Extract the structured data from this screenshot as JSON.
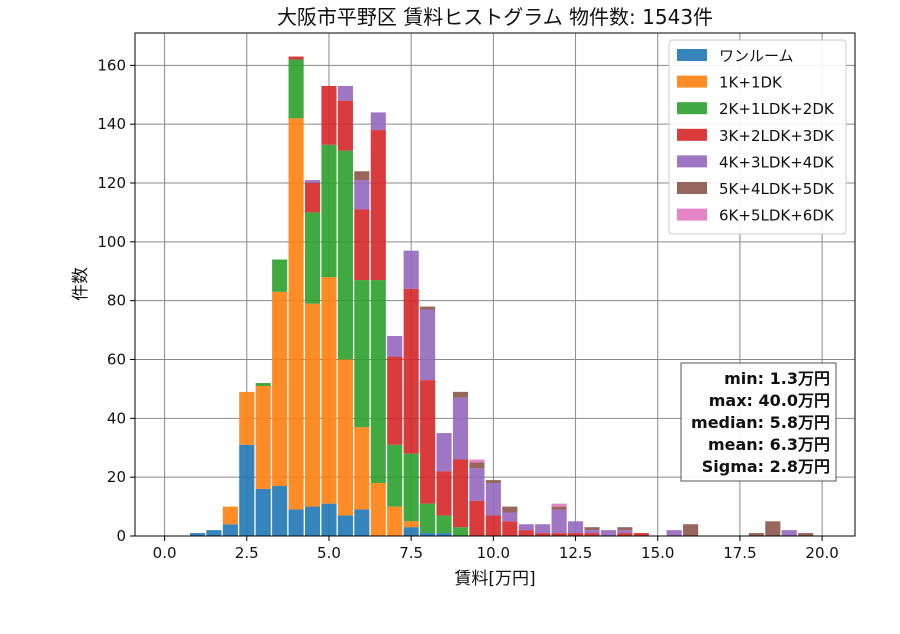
{
  "chart_data": {
    "type": "bar",
    "stacked": true,
    "title": "大阪市平野区 賃料ヒストグラム  物件数: 1543件",
    "xlabel": "賃料[万円]",
    "ylabel": "件数",
    "xlim": [
      -0.9,
      21.0
    ],
    "ylim": [
      0,
      171
    ],
    "xticks": [
      0.0,
      2.5,
      5.0,
      7.5,
      10.0,
      12.5,
      15.0,
      17.5,
      20.0
    ],
    "xtick_labels": [
      "0.0",
      "2.5",
      "5.0",
      "7.5",
      "10.0",
      "12.5",
      "15.0",
      "17.5",
      "20.0"
    ],
    "yticks": [
      0,
      20,
      40,
      60,
      80,
      100,
      120,
      140,
      160
    ],
    "ytick_labels": [
      "0",
      "20",
      "40",
      "60",
      "80",
      "100",
      "120",
      "140",
      "160"
    ],
    "grid": true,
    "legend_position": "top-right",
    "bin_width": 0.5,
    "bin_centers": [
      1.0,
      1.5,
      2.0,
      2.5,
      3.0,
      3.5,
      4.0,
      4.5,
      5.0,
      5.5,
      6.0,
      6.5,
      7.0,
      7.5,
      8.0,
      8.5,
      9.0,
      9.5,
      10.0,
      10.5,
      11.0,
      11.5,
      12.0,
      12.5,
      13.0,
      13.5,
      14.0,
      14.5,
      15.0,
      15.5,
      16.0,
      16.5,
      17.0,
      17.5,
      18.0,
      18.5,
      19.0,
      19.5
    ],
    "series": [
      {
        "name": "ワンルーム",
        "color": "#1f77b4",
        "values": [
          1,
          2,
          4,
          31,
          16,
          17,
          9,
          10,
          11,
          7,
          9,
          0,
          0,
          3,
          1,
          1,
          0,
          0,
          0,
          0,
          0,
          0,
          0,
          0,
          0,
          0,
          0,
          0,
          0,
          0,
          0,
          0,
          0,
          0,
          0,
          0,
          0,
          0
        ]
      },
      {
        "name": "1K+1DK",
        "color": "#ff7f0e",
        "values": [
          0,
          0,
          6,
          18,
          35,
          66,
          133,
          69,
          77,
          53,
          28,
          18,
          10,
          2,
          0,
          0,
          0,
          0,
          0,
          0,
          0,
          0,
          0,
          0,
          0,
          0,
          0,
          0,
          0,
          0,
          0,
          0,
          0,
          0,
          0,
          0,
          0,
          0
        ]
      },
      {
        "name": "2K+1LDK+2DK",
        "color": "#2ca02c",
        "values": [
          0,
          0,
          0,
          0,
          1,
          11,
          20,
          31,
          45,
          71,
          50,
          69,
          21,
          23,
          10,
          6,
          3,
          0,
          0,
          0,
          0,
          0,
          0,
          0,
          0,
          0,
          0,
          0,
          0,
          0,
          0,
          0,
          0,
          0,
          0,
          0,
          0,
          0
        ]
      },
      {
        "name": "3K+2LDK+3DK",
        "color": "#d62728",
        "values": [
          0,
          0,
          0,
          0,
          0,
          0,
          1,
          10,
          20,
          17,
          24,
          51,
          30,
          56,
          42,
          15,
          23,
          12,
          7,
          5,
          2,
          1,
          1,
          1,
          1,
          0,
          1,
          1,
          0,
          0,
          0,
          0,
          0,
          0,
          0,
          0,
          0,
          0
        ]
      },
      {
        "name": "4K+3LDK+4DK",
        "color": "#9467bd",
        "values": [
          0,
          0,
          0,
          0,
          0,
          0,
          0,
          1,
          0,
          5,
          10,
          6,
          7,
          13,
          24,
          13,
          21,
          11,
          11,
          3,
          2,
          3,
          8,
          4,
          1,
          2,
          1,
          0,
          0,
          2,
          0,
          0,
          0,
          0,
          0,
          0,
          2,
          0
        ]
      },
      {
        "name": "5K+4LDK+5DK",
        "color": "#8c564b",
        "values": [
          0,
          0,
          0,
          0,
          0,
          0,
          0,
          0,
          0,
          0,
          3,
          0,
          0,
          0,
          1,
          0,
          2,
          2,
          1,
          2,
          0,
          0,
          1,
          0,
          1,
          0,
          1,
          0,
          0,
          0,
          4,
          0,
          0,
          0,
          1,
          5,
          0,
          1
        ]
      },
      {
        "name": "6K+5LDK+6DK",
        "color": "#e377c2",
        "values": [
          0,
          0,
          0,
          0,
          0,
          0,
          0,
          0,
          0,
          0,
          0,
          0,
          0,
          0,
          0,
          0,
          0,
          1,
          0,
          0,
          0,
          0,
          1,
          0,
          0,
          0,
          0,
          0,
          0,
          0,
          0,
          0,
          0,
          0,
          0,
          0,
          0,
          0
        ]
      }
    ],
    "stats": {
      "min": "min: 1.3万円",
      "max": "max: 40.0万円",
      "median": "median: 5.8万円",
      "mean": "mean: 6.3万円",
      "sigma": "Sigma: 2.8万円"
    }
  }
}
